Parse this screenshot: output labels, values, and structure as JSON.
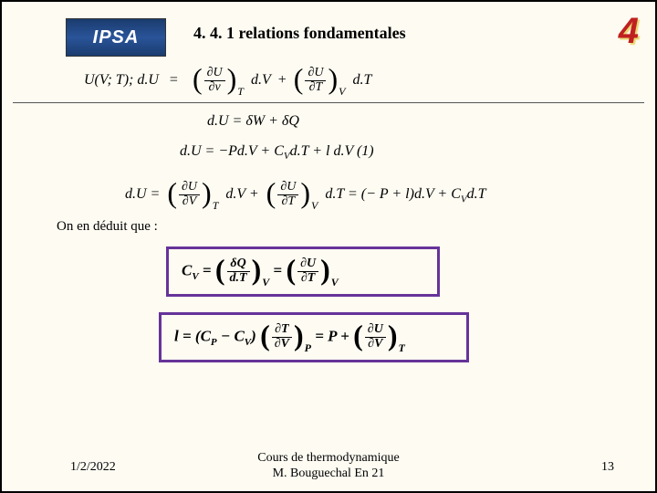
{
  "logo": {
    "text": "IPSA"
  },
  "title": "4. 4. 1  relations fondamentales",
  "slide_number": "4",
  "eq1": {
    "lhs": "U(V; T); d.U",
    "eqsign": "=",
    "pd1_num": "∂U",
    "pd1_den": "∂v",
    "sub1": "T",
    "after1": "d.V",
    "plus": "+",
    "pd2_num": "∂U",
    "pd2_den": "∂T",
    "sub2": "V",
    "after2": "d.T"
  },
  "eq2": {
    "text": "d.U =    δW   +   δQ"
  },
  "eq3": {
    "text": "d.U = −Pd.V + C",
    "cv_sub": "V",
    "tail": "d.T + l d.V   (1)"
  },
  "eq4": {
    "pre": "d.U  =",
    "pd1_num": "∂U",
    "pd1_den": "∂V",
    "sub1": "T",
    "after1": "d.V +",
    "pd2_num": "∂U",
    "pd2_den": "∂T",
    "sub2": "V",
    "after2": "d.T  =  (− P + l)d.V +  C",
    "cv_sub": "V",
    "tail": "d.T"
  },
  "deduit": "On en déduit que :",
  "box1": {
    "cv": "C",
    "cv_sub": "V",
    "eq": " = ",
    "f1_num": "δQ",
    "f1_den": "d.T",
    "s1": "V",
    "mid": "   =   ",
    "f2_num": "∂U",
    "f2_den": "∂T",
    "s2": "V"
  },
  "box2": {
    "pre": "l = (C",
    "cp_sub": "P",
    "mid1": " − C",
    "cv_sub": "V",
    "mid2": ")",
    "f1_num": "∂T",
    "f1_den": "∂V",
    "s1": "P",
    "eq": " = P + ",
    "f2_num": "∂U",
    "f2_den": "∂V",
    "s2": "T"
  },
  "footer": {
    "date": "1/2/2022",
    "center_line1": "Cours de thermodynamique",
    "center_line2": "M. Bouguechal  En 21",
    "page": "13"
  },
  "colors": {
    "background": "#fdfbf2",
    "box_border": "#663399",
    "slide_num": "#c02020"
  }
}
